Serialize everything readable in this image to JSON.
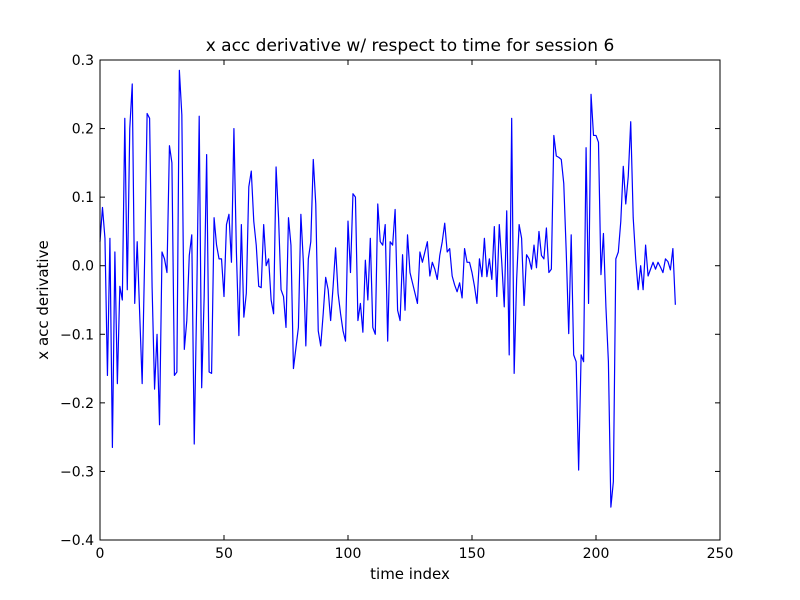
{
  "chart_data": {
    "type": "line",
    "title": "x acc derivative w/ respect to time for session 6",
    "xlabel": "time index",
    "ylabel": "x acc derivative",
    "xlim": [
      0,
      250
    ],
    "ylim": [
      -0.4,
      0.3
    ],
    "xticks": [
      "0",
      "50",
      "100",
      "150",
      "200",
      "250"
    ],
    "yticks": [
      "−0.4",
      "−0.3",
      "−0.2",
      "−0.1",
      "0.0",
      "0.1",
      "0.2",
      "0.3"
    ],
    "grid": false,
    "legend": "none",
    "series": [
      {
        "color": "#0000ff",
        "x": [
          0,
          1,
          2,
          3,
          4,
          5,
          6,
          7,
          8,
          9,
          10,
          11,
          12,
          13,
          14,
          15,
          16,
          17,
          18,
          19,
          20,
          21,
          22,
          23,
          24,
          25,
          26,
          27,
          28,
          29,
          30,
          31,
          32,
          33,
          34,
          35,
          36,
          37,
          38,
          39,
          40,
          41,
          42,
          43,
          44,
          45,
          46,
          47,
          48,
          49,
          50,
          51,
          52,
          53,
          54,
          55,
          56,
          57,
          58,
          59,
          60,
          61,
          62,
          63,
          64,
          65,
          66,
          67,
          68,
          69,
          70,
          71,
          72,
          73,
          74,
          75,
          76,
          77,
          78,
          79,
          80,
          81,
          82,
          83,
          84,
          85,
          86,
          87,
          88,
          89,
          90,
          91,
          92,
          93,
          94,
          95,
          96,
          97,
          98,
          99,
          100,
          101,
          102,
          103,
          104,
          105,
          106,
          107,
          108,
          109,
          110,
          111,
          112,
          113,
          114,
          115,
          116,
          117,
          118,
          119,
          120,
          121,
          122,
          123,
          124,
          125,
          126,
          127,
          128,
          129,
          130,
          131,
          132,
          133,
          134,
          135,
          136,
          137,
          138,
          139,
          140,
          141,
          142,
          143,
          144,
          145,
          146,
          147,
          148,
          149,
          150,
          151,
          152,
          153,
          154,
          155,
          156,
          157,
          158,
          159,
          160,
          161,
          162,
          163,
          164,
          165,
          166,
          167,
          168,
          169,
          170,
          171,
          172,
          173,
          174,
          175,
          176,
          177,
          178,
          179,
          180,
          181,
          182,
          183,
          184,
          185,
          186,
          187,
          188,
          189,
          190,
          191,
          192,
          193,
          194,
          195,
          196,
          197,
          198,
          199,
          200,
          201,
          202,
          203,
          204,
          205,
          206,
          207,
          208,
          209,
          210,
          211,
          212,
          213,
          214,
          215,
          216,
          217,
          218,
          219,
          220,
          221,
          222,
          223,
          224,
          225,
          226,
          227,
          228,
          229,
          230,
          231,
          232
        ],
        "y": [
          0.035,
          0.085,
          0.04,
          -0.16,
          0.04,
          -0.265,
          0.02,
          -0.172,
          -0.03,
          -0.05,
          0.215,
          -0.035,
          0.2,
          0.265,
          -0.055,
          0.035,
          -0.07,
          -0.172,
          0.01,
          0.222,
          0.215,
          -0.03,
          -0.18,
          -0.1,
          -0.232,
          0.02,
          0.01,
          -0.01,
          0.175,
          0.15,
          -0.16,
          -0.155,
          0.285,
          0.22,
          -0.122,
          -0.08,
          0.015,
          0.045,
          -0.26,
          -0.05,
          0.218,
          -0.178,
          -0.045,
          0.162,
          -0.155,
          -0.157,
          0.07,
          0.03,
          0.01,
          0.01,
          -0.045,
          0.06,
          0.075,
          0.005,
          0.2,
          0.02,
          -0.102,
          0.06,
          -0.075,
          -0.04,
          0.115,
          0.138,
          0.065,
          0.03,
          -0.03,
          -0.032,
          0.06,
          0.0,
          0.01,
          -0.05,
          -0.07,
          0.144,
          0.07,
          -0.035,
          -0.045,
          -0.09,
          0.07,
          0.03,
          -0.15,
          -0.12,
          -0.09,
          0.075,
          0.005,
          -0.117,
          0.01,
          0.035,
          0.155,
          0.09,
          -0.095,
          -0.117,
          -0.07,
          -0.017,
          -0.035,
          -0.08,
          -0.03,
          0.026,
          -0.04,
          -0.07,
          -0.095,
          -0.11,
          0.065,
          -0.01,
          0.105,
          0.1,
          -0.08,
          -0.055,
          -0.097,
          0.008,
          -0.05,
          0.04,
          -0.09,
          -0.1,
          0.09,
          0.035,
          0.03,
          0.06,
          -0.11,
          0.035,
          0.03,
          0.082,
          -0.065,
          -0.08,
          0.016,
          -0.065,
          0.045,
          -0.01,
          -0.025,
          -0.04,
          -0.055,
          0.02,
          0.005,
          0.02,
          0.035,
          -0.015,
          0.005,
          -0.005,
          -0.02,
          0.015,
          0.035,
          0.062,
          0.02,
          0.025,
          -0.015,
          -0.028,
          -0.038,
          -0.025,
          -0.047,
          0.025,
          0.005,
          0.005,
          -0.01,
          -0.03,
          -0.055,
          0.01,
          -0.016,
          0.04,
          -0.016,
          0.01,
          -0.02,
          0.057,
          -0.045,
          0.06,
          0.005,
          -0.06,
          0.08,
          -0.13,
          0.215,
          -0.157,
          -0.02,
          0.06,
          0.04,
          -0.058,
          0.016,
          0.01,
          -0.005,
          0.03,
          -0.003,
          0.05,
          0.015,
          0.01,
          0.055,
          -0.01,
          -0.005,
          0.19,
          0.16,
          0.158,
          0.155,
          0.12,
          0.02,
          -0.099,
          0.045,
          -0.13,
          -0.14,
          -0.298,
          -0.13,
          -0.14,
          0.172,
          -0.055,
          0.25,
          0.19,
          0.19,
          0.18,
          -0.013,
          0.047,
          -0.06,
          -0.14,
          -0.352,
          -0.315,
          0.01,
          0.02,
          0.065,
          0.145,
          0.09,
          0.13,
          0.21,
          0.07,
          0.01,
          -0.035,
          0.0,
          -0.035,
          0.03,
          -0.015,
          -0.005,
          0.005,
          -0.005,
          0.005,
          -0.002,
          -0.01,
          0.01,
          0.006,
          -0.006,
          0.025,
          -0.057
        ]
      }
    ]
  }
}
